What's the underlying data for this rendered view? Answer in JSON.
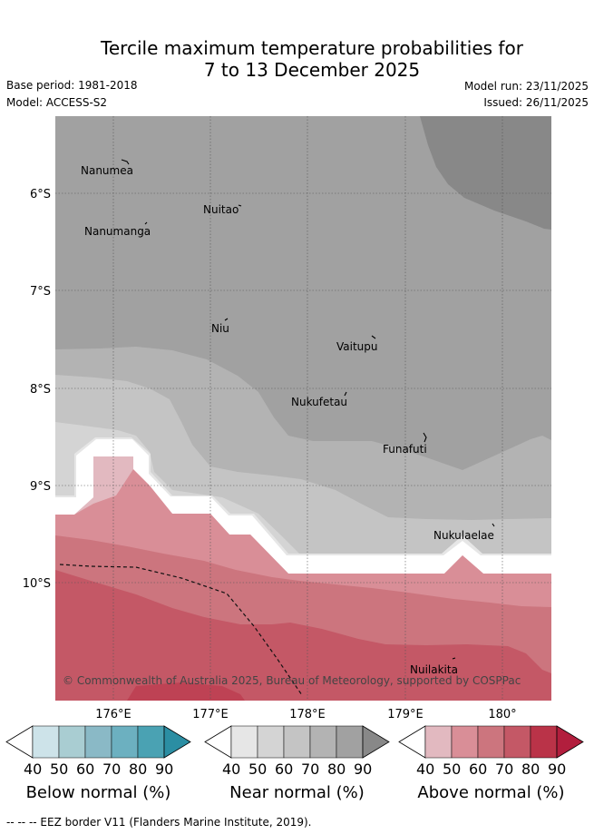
{
  "header": {
    "title_line1": "Tercile maximum temperature probabilities for",
    "title_line2": "7 to 13 December 2025",
    "base_period": "Base period: 1981-2018",
    "model": "Model: ACCESS-S2",
    "model_run": "Model run: 23/11/2025",
    "issued": "Issued: 26/11/2025"
  },
  "map": {
    "y_ticks": [
      "6°S",
      "7°S",
      "8°S",
      "9°S",
      "10°S"
    ],
    "x_ticks": [
      "176°E",
      "177°E",
      "178°E",
      "179°E",
      "180°"
    ],
    "islands": [
      "Nanumea",
      "Nuitao",
      "Nanumanga",
      "Niu",
      "Vaitupu",
      "Nukufetau",
      "Funafuti",
      "Nukulaelae",
      "Nuilakita"
    ],
    "copyright": "© Commonwealth of Australia 2025, Bureau of Meteorology, supported by COSPPac"
  },
  "colorbars": [
    {
      "title": "Below normal (%)",
      "ticks": [
        "40",
        "50",
        "60",
        "70",
        "80",
        "90"
      ],
      "colors": [
        "#cde3e9",
        "#a9cdd2",
        "#8ab9c6",
        "#6cb0c0",
        "#4aa2b3",
        "#2b8ea3"
      ]
    },
    {
      "title": "Near normal (%)",
      "ticks": [
        "40",
        "50",
        "60",
        "70",
        "80",
        "90"
      ],
      "colors": [
        "#e6e6e6",
        "#d4d4d4",
        "#c4c4c4",
        "#b3b3b3",
        "#a1a1a1",
        "#888888"
      ]
    },
    {
      "title": "Above normal (%)",
      "ticks": [
        "40",
        "50",
        "60",
        "70",
        "80",
        "90"
      ],
      "colors": [
        "#e2b9c0",
        "#d98e97",
        "#cc757e",
        "#c45866",
        "#ba3348",
        "#b21e3d"
      ]
    }
  ],
  "footer": {
    "legend_text": "--  --  -- EEZ border V11 (Flanders Marine Institute, 2019)."
  }
}
